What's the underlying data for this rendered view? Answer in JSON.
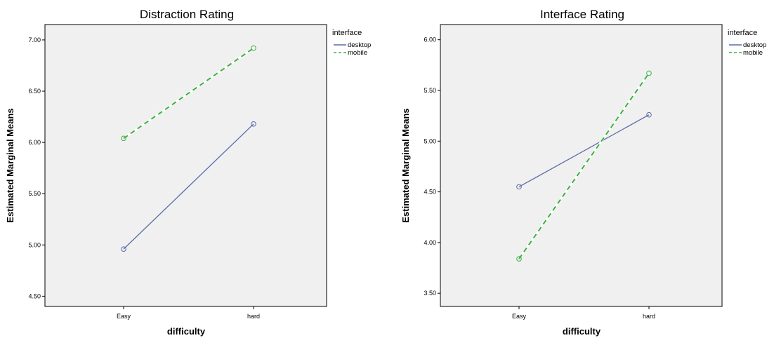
{
  "chart_data": [
    {
      "type": "line",
      "title": "Distraction Rating",
      "xlabel": "difficulty",
      "ylabel": "Estimated Marginal Means",
      "categories": [
        "Easy",
        "hard"
      ],
      "ylim": [
        4.4,
        7.15
      ],
      "yticks": [
        "4.50",
        "5.00",
        "5.50",
        "6.00",
        "6.50",
        "7.00"
      ],
      "legend_title": "interface",
      "legend_position": "top-right",
      "series": [
        {
          "name": "desktop",
          "values": [
            4.96,
            6.18
          ],
          "color": "#5b6aa8",
          "style": "solid"
        },
        {
          "name": "mobile",
          "values": [
            6.04,
            6.92
          ],
          "color": "#3cb043",
          "style": "dashed"
        }
      ]
    },
    {
      "type": "line",
      "title": "Interface Rating",
      "xlabel": "difficulty",
      "ylabel": "Estimated Marginal Means",
      "categories": [
        "Easy",
        "hard"
      ],
      "ylim": [
        3.37,
        6.15
      ],
      "yticks": [
        "3.50",
        "4.00",
        "4.50",
        "5.00",
        "5.50",
        "6.00"
      ],
      "legend_title": "interface",
      "legend_position": "top-right",
      "series": [
        {
          "name": "desktop",
          "values": [
            4.55,
            5.26
          ],
          "color": "#5b6aa8",
          "style": "solid"
        },
        {
          "name": "mobile",
          "values": [
            3.84,
            5.67
          ],
          "color": "#3cb043",
          "style": "dashed"
        }
      ]
    }
  ]
}
